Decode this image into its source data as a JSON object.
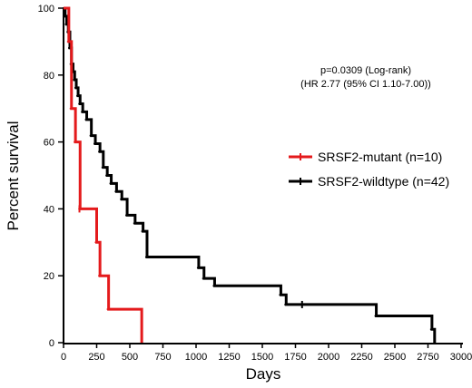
{
  "chart_data": {
    "type": "line",
    "xlabel": "Days",
    "ylabel": "Percent survival",
    "xlim": [
      0,
      3000
    ],
    "ylim": [
      0,
      100
    ],
    "x_ticks": [
      0,
      250,
      500,
      750,
      1000,
      1250,
      1500,
      1750,
      2000,
      2250,
      2500,
      2750,
      3000
    ],
    "y_ticks": [
      0,
      20,
      40,
      60,
      80,
      100
    ],
    "annotations": [
      "p=0.0309 (Log-rank)",
      "(HR 2.77 (95% CI 1.10-7.00))"
    ],
    "legend_position": "right",
    "series": [
      {
        "name": "SRSF2-mutant (n=10)",
        "color": "#e41a1c",
        "step": true,
        "x": [
          0,
          40,
          60,
          90,
          125,
          250,
          275,
          340,
          590
        ],
        "y": [
          100,
          90,
          70,
          60,
          40,
          30,
          20,
          10,
          0
        ]
      },
      {
        "name": "SRSF2-wildtype (n=42)",
        "color": "#000000",
        "step": true,
        "x": [
          0,
          12,
          24,
          36,
          48,
          60,
          72,
          84,
          96,
          110,
          125,
          145,
          175,
          210,
          240,
          275,
          300,
          330,
          360,
          400,
          440,
          480,
          540,
          600,
          630,
          1020,
          1060,
          1140,
          1640,
          1680,
          2360,
          2780,
          2800
        ],
        "y": [
          100,
          97.6,
          95.2,
          92.9,
          88.1,
          83.3,
          81.0,
          78.6,
          76.2,
          73.8,
          71.4,
          69.0,
          66.7,
          61.9,
          59.5,
          57.1,
          52.4,
          50.0,
          47.6,
          45.2,
          42.9,
          38.1,
          35.7,
          33.3,
          25.6,
          22.4,
          19.2,
          17.0,
          14.3,
          11.4,
          8.0,
          4.0,
          0
        ]
      }
    ],
    "censor_marks": [
      {
        "series": 0,
        "x": 120,
        "y": 40
      },
      {
        "series": 1,
        "x": 1800,
        "y": 11.4
      }
    ]
  }
}
